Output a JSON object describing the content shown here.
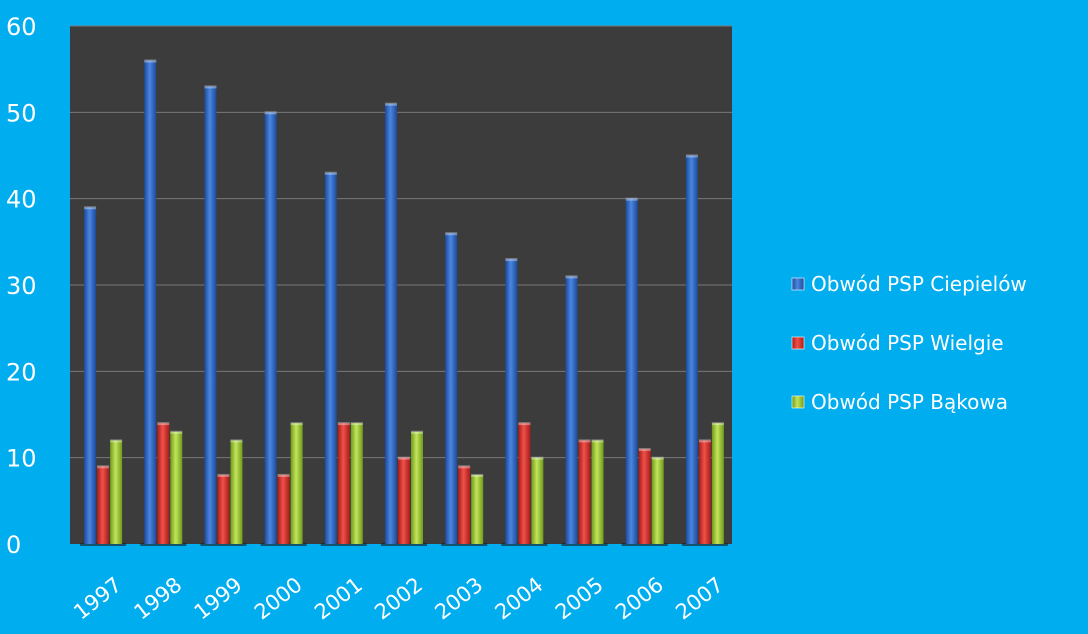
{
  "chart_data": {
    "type": "bar",
    "categories": [
      "1997",
      "1998",
      "1999",
      "2000",
      "2001",
      "2002",
      "2003",
      "2004",
      "2005",
      "2006",
      "2007"
    ],
    "series": [
      {
        "name": "Obwód PSP Ciepielów",
        "values": [
          39,
          56,
          53,
          50,
          43,
          51,
          36,
          33,
          31,
          40,
          45
        ],
        "color": "#2f66c4"
      },
      {
        "name": "Obwód PSP Wielgie",
        "values": [
          9,
          14,
          8,
          8,
          14,
          10,
          9,
          14,
          12,
          11,
          12
        ],
        "color": "#d8302a"
      },
      {
        "name": "Obwód PSP Bąkowa",
        "values": [
          12,
          13,
          12,
          14,
          14,
          13,
          8,
          10,
          12,
          10,
          14
        ],
        "color": "#9dc83a"
      }
    ],
    "ylim": [
      0,
      60
    ],
    "yticks": [
      "0",
      "10",
      "20",
      "30",
      "40",
      "50",
      "60"
    ],
    "grid": true,
    "legend": "right",
    "colors": {
      "background": "#00adee",
      "plot_area": "#3c3c3c",
      "gridline": "#777777",
      "text": "#ffffff"
    }
  }
}
